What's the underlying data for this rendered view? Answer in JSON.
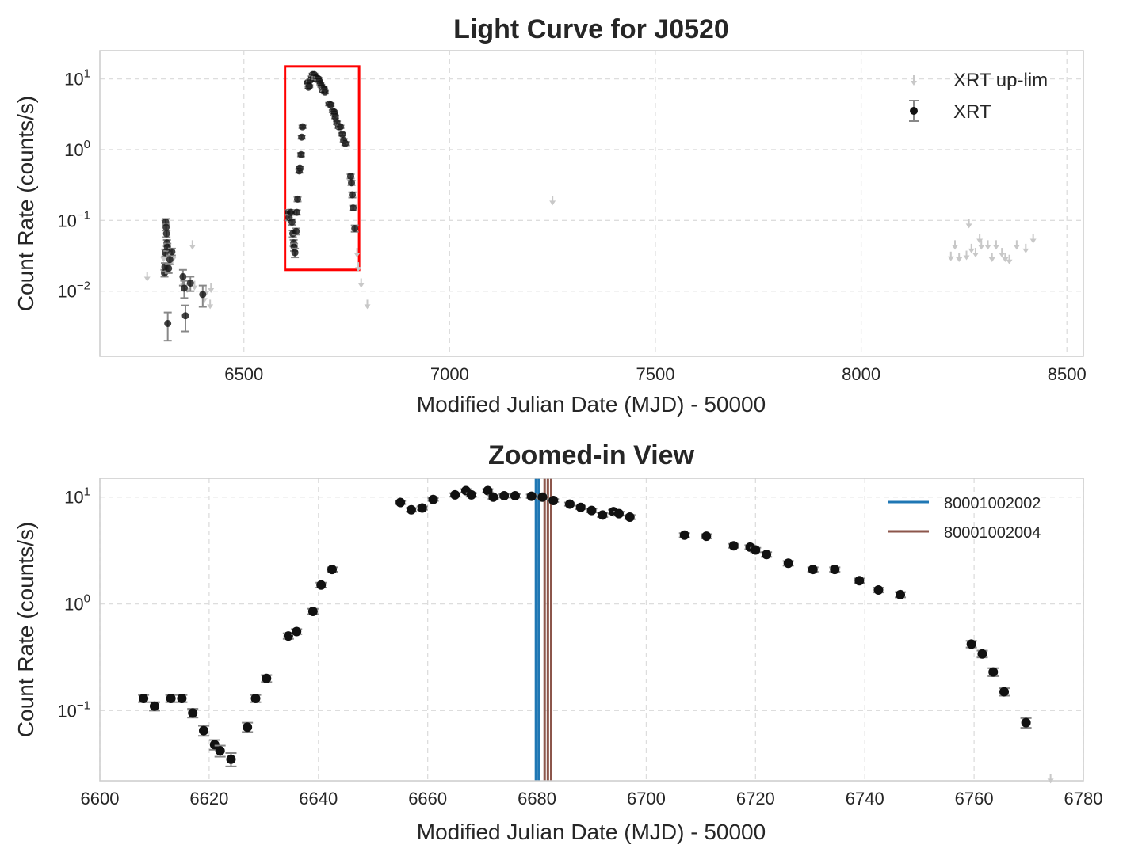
{
  "chart_data": [
    {
      "type": "scatter",
      "title": "Light Curve for J0520",
      "xlabel": "Modified Julian Date (MJD) - 50000",
      "ylabel": "Count Rate (counts/s)",
      "yscale": "log",
      "xlim": [
        6150,
        8540
      ],
      "ylim": [
        0.0012,
        25
      ],
      "xticks": [
        {
          "value": 6500,
          "label": "6500"
        },
        {
          "value": 7000,
          "label": "7000"
        },
        {
          "value": 7500,
          "label": "7500"
        },
        {
          "value": 8000,
          "label": "8000"
        },
        {
          "value": 8500,
          "label": "8500"
        }
      ],
      "yticks": [
        {
          "value": 10,
          "base": "10",
          "exp": "1"
        },
        {
          "value": 1,
          "base": "10",
          "exp": "0"
        },
        {
          "value": 0.1,
          "base": "10",
          "exp": "−1"
        },
        {
          "value": 0.01,
          "base": "10",
          "exp": "−2"
        }
      ],
      "grid": true,
      "legend": {
        "position": "top-right",
        "entries": [
          "XRT up-lim",
          "XRT"
        ]
      },
      "highlight_box": {
        "x0": 6600,
        "x1": 6780,
        "y0": 0.02,
        "y1": 15,
        "color": "#ff0000"
      },
      "series": [
        {
          "name": "XRT",
          "points": [
            [
              6307,
              0.018,
              0.002
            ],
            [
              6308,
              0.022,
              0.003
            ],
            [
              6309,
              0.035,
              0.004
            ],
            [
              6310,
              0.095,
              0.01
            ],
            [
              6311,
              0.08,
              0.008
            ],
            [
              6312,
              0.065,
              0.007
            ],
            [
              6313,
              0.048,
              0.005
            ],
            [
              6314,
              0.042,
              0.005
            ],
            [
              6315,
              0.0035,
              0.0015
            ],
            [
              6317,
              0.021,
              0.003
            ],
            [
              6320,
              0.028,
              0.004
            ],
            [
              6325,
              0.036,
              0.004
            ],
            [
              6352,
              0.016,
              0.004
            ],
            [
              6355,
              0.011,
              0.003
            ],
            [
              6358,
              0.0045,
              0.0018
            ],
            [
              6370,
              0.013,
              0.003
            ],
            [
              6400,
              0.009,
              0.003
            ],
            [
              6608,
              0.13,
              0.01
            ],
            [
              6610,
              0.11,
              0.01
            ],
            [
              6613,
              0.13,
              0.01
            ],
            [
              6615,
              0.13,
              0.01
            ],
            [
              6617,
              0.095,
              0.009
            ],
            [
              6619,
              0.065,
              0.007
            ],
            [
              6621,
              0.048,
              0.005
            ],
            [
              6622,
              0.042,
              0.005
            ],
            [
              6624,
              0.035,
              0.005
            ],
            [
              6627,
              0.07,
              0.007
            ],
            [
              6628.5,
              0.13,
              0.01
            ],
            [
              6630.5,
              0.2,
              0.015
            ],
            [
              6634.5,
              0.5,
              0.03
            ],
            [
              6636,
              0.55,
              0.03
            ],
            [
              6639,
              0.85,
              0.05
            ],
            [
              6640.5,
              1.5,
              0.08
            ],
            [
              6642.5,
              2.1,
              0.1
            ],
            [
              6655,
              8.9,
              0.3
            ],
            [
              6657,
              7.6,
              0.3
            ],
            [
              6659,
              7.9,
              0.3
            ],
            [
              6661,
              9.5,
              0.3
            ],
            [
              6665,
              10.5,
              0.4
            ],
            [
              6667,
              11.5,
              0.4
            ],
            [
              6668,
              10.5,
              0.4
            ],
            [
              6671,
              11.5,
              0.4
            ],
            [
              6672,
              10.0,
              0.4
            ],
            [
              6674,
              10.3,
              0.4
            ],
            [
              6676,
              10.3,
              0.4
            ],
            [
              6679,
              10.2,
              0.4
            ],
            [
              6681,
              10.0,
              0.4
            ],
            [
              6683,
              9.3,
              0.3
            ],
            [
              6686,
              8.6,
              0.3
            ],
            [
              6688,
              8.0,
              0.3
            ],
            [
              6690,
              7.5,
              0.3
            ],
            [
              6692,
              6.8,
              0.3
            ],
            [
              6694,
              7.3,
              0.3
            ],
            [
              6695,
              7.0,
              0.3
            ],
            [
              6697,
              6.5,
              0.3
            ],
            [
              6707,
              4.4,
              0.2
            ],
            [
              6711,
              4.3,
              0.2
            ],
            [
              6716,
              3.5,
              0.15
            ],
            [
              6719,
              3.4,
              0.15
            ],
            [
              6720,
              3.2,
              0.15
            ],
            [
              6722,
              2.9,
              0.15
            ],
            [
              6726,
              2.4,
              0.12
            ],
            [
              6730.5,
              2.1,
              0.1
            ],
            [
              6734.5,
              2.1,
              0.1
            ],
            [
              6739,
              1.65,
              0.08
            ],
            [
              6742.5,
              1.35,
              0.07
            ],
            [
              6746.5,
              1.22,
              0.07
            ],
            [
              6759.5,
              0.42,
              0.03
            ],
            [
              6761.5,
              0.34,
              0.025
            ],
            [
              6763.5,
              0.23,
              0.02
            ],
            [
              6765.5,
              0.15,
              0.012
            ],
            [
              6769.5,
              0.077,
              0.008
            ]
          ]
        },
        {
          "name": "XRT up-lim",
          "points": [
            [
              6265,
              0.016
            ],
            [
              6305,
              0.03
            ],
            [
              6322,
              0.026
            ],
            [
              6328,
              0.03
            ],
            [
              6352,
              0.013
            ],
            [
              6362,
              0.011
            ],
            [
              6375,
              0.045
            ],
            [
              6380,
              0.012
            ],
            [
              6404,
              0.008
            ],
            [
              6408,
              0.01
            ],
            [
              6418,
              0.0065
            ],
            [
              6420,
              0.011
            ],
            [
              6775,
              0.035
            ],
            [
              6778,
              0.022
            ],
            [
              6785,
              0.013
            ],
            [
              6800,
              0.0065
            ],
            [
              7250,
              0.19
            ],
            [
              8218,
              0.031
            ],
            [
              8228,
              0.045
            ],
            [
              8238,
              0.03
            ],
            [
              8256,
              0.032
            ],
            [
              8262,
              0.09
            ],
            [
              8268,
              0.04
            ],
            [
              8278,
              0.035
            ],
            [
              8288,
              0.055
            ],
            [
              8292,
              0.045
            ],
            [
              8308,
              0.045
            ],
            [
              8318,
              0.03
            ],
            [
              8328,
              0.045
            ],
            [
              8342,
              0.035
            ],
            [
              8350,
              0.03
            ],
            [
              8360,
              0.028
            ],
            [
              8378,
              0.045
            ],
            [
              8400,
              0.04
            ],
            [
              8418,
              0.055
            ]
          ]
        }
      ]
    },
    {
      "type": "scatter",
      "title": "Zoomed-in View",
      "xlabel": "Modified Julian Date (MJD) - 50000",
      "ylabel": "Count Rate (counts/s)",
      "yscale": "log",
      "xlim": [
        6600,
        6780
      ],
      "ylim": [
        0.022,
        15
      ],
      "xticks": [
        {
          "value": 6600,
          "label": "6600"
        },
        {
          "value": 6620,
          "label": "6620"
        },
        {
          "value": 6640,
          "label": "6640"
        },
        {
          "value": 6660,
          "label": "6660"
        },
        {
          "value": 6680,
          "label": "6680"
        },
        {
          "value": 6700,
          "label": "6700"
        },
        {
          "value": 6720,
          "label": "6720"
        },
        {
          "value": 6740,
          "label": "6740"
        },
        {
          "value": 6760,
          "label": "6760"
        },
        {
          "value": 6780,
          "label": "6780"
        }
      ],
      "yticks": [
        {
          "value": 10,
          "base": "10",
          "exp": "1"
        },
        {
          "value": 1,
          "base": "10",
          "exp": "0"
        },
        {
          "value": 0.1,
          "base": "10",
          "exp": "−1"
        }
      ],
      "grid": true,
      "legend": {
        "position": "top-right",
        "entries": [
          "80001002002",
          "80001002004"
        ]
      },
      "vlines": [
        {
          "label": "80001002002",
          "color": "#1f77b4",
          "x": [
            6679.8,
            6680.3
          ]
        },
        {
          "label": "80001002004",
          "color": "#8c564b",
          "x": [
            6681.4,
            6682.0,
            6682.6
          ]
        }
      ],
      "series": [
        {
          "name": "XRT",
          "points": [
            [
              6608,
              0.13,
              0.01
            ],
            [
              6610,
              0.11,
              0.01
            ],
            [
              6613,
              0.13,
              0.01
            ],
            [
              6615,
              0.13,
              0.01
            ],
            [
              6617,
              0.095,
              0.009
            ],
            [
              6619,
              0.065,
              0.007
            ],
            [
              6621,
              0.048,
              0.005
            ],
            [
              6622,
              0.042,
              0.005
            ],
            [
              6624,
              0.035,
              0.005
            ],
            [
              6627,
              0.07,
              0.007
            ],
            [
              6628.5,
              0.13,
              0.01
            ],
            [
              6630.5,
              0.2,
              0.015
            ],
            [
              6634.5,
              0.5,
              0.03
            ],
            [
              6636,
              0.55,
              0.03
            ],
            [
              6639,
              0.85,
              0.05
            ],
            [
              6640.5,
              1.5,
              0.08
            ],
            [
              6642.5,
              2.1,
              0.1
            ],
            [
              6655,
              8.9,
              0.3
            ],
            [
              6657,
              7.6,
              0.3
            ],
            [
              6659,
              7.9,
              0.3
            ],
            [
              6661,
              9.5,
              0.3
            ],
            [
              6665,
              10.5,
              0.4
            ],
            [
              6667,
              11.5,
              0.4
            ],
            [
              6668,
              10.5,
              0.4
            ],
            [
              6671,
              11.5,
              0.4
            ],
            [
              6672,
              10.0,
              0.4
            ],
            [
              6674,
              10.3,
              0.4
            ],
            [
              6676,
              10.3,
              0.4
            ],
            [
              6679,
              10.2,
              0.4
            ],
            [
              6681,
              10.0,
              0.4
            ],
            [
              6683,
              9.3,
              0.3
            ],
            [
              6686,
              8.6,
              0.3
            ],
            [
              6688,
              8.0,
              0.3
            ],
            [
              6690,
              7.5,
              0.3
            ],
            [
              6692,
              6.8,
              0.3
            ],
            [
              6694,
              7.3,
              0.3
            ],
            [
              6695,
              7.0,
              0.3
            ],
            [
              6697,
              6.5,
              0.3
            ],
            [
              6707,
              4.4,
              0.2
            ],
            [
              6711,
              4.3,
              0.2
            ],
            [
              6716,
              3.5,
              0.15
            ],
            [
              6719,
              3.4,
              0.15
            ],
            [
              6720,
              3.2,
              0.15
            ],
            [
              6722,
              2.9,
              0.15
            ],
            [
              6726,
              2.4,
              0.12
            ],
            [
              6730.5,
              2.1,
              0.1
            ],
            [
              6734.5,
              2.1,
              0.1
            ],
            [
              6739,
              1.65,
              0.08
            ],
            [
              6742.5,
              1.35,
              0.07
            ],
            [
              6746.5,
              1.22,
              0.07
            ],
            [
              6759.5,
              0.42,
              0.03
            ],
            [
              6761.5,
              0.34,
              0.025
            ],
            [
              6763.5,
              0.23,
              0.02
            ],
            [
              6765.5,
              0.15,
              0.012
            ],
            [
              6769.5,
              0.077,
              0.008
            ]
          ]
        },
        {
          "name": "XRT up-lim",
          "points": [
            [
              6774,
              0.023
            ]
          ]
        }
      ]
    }
  ]
}
